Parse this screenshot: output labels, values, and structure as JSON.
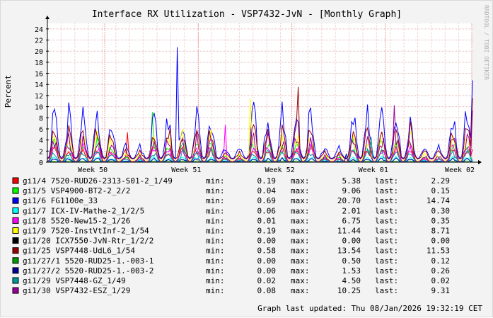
{
  "watermark": "RRDTOOL / TOBI OETIKER",
  "footer": {
    "updated": "Graph last updated: Thu 08/Jan/2026 19:32:19 CET"
  },
  "colors": {
    "background": "#f3f3f3",
    "canvas": "#ffffff",
    "grid_minor": "#e6b8b8",
    "grid_major": "#e6b8b8"
  },
  "chart_data": {
    "type": "line",
    "title": "Interface RX Utilization - VSP7432-JvN - [Monthly Graph]",
    "ylabel": "Percent",
    "xlabel": "",
    "ylim": [
      0,
      25
    ],
    "yticks": [
      0,
      2,
      4,
      6,
      8,
      10,
      12,
      14,
      16,
      18,
      20,
      22,
      24
    ],
    "x_ticks": [
      {
        "label": "Week 50",
        "at": 0.135
      },
      {
        "label": "Week 51",
        "at": 0.355
      },
      {
        "label": "Week 52",
        "at": 0.575
      },
      {
        "label": "Week 01",
        "at": 0.795
      },
      {
        "label": "Week 02",
        "at": 1.0
      }
    ],
    "grid": true,
    "legend_placement": "bottom",
    "stat_labels": {
      "min": "min:",
      "max": "max:",
      "last": "last:"
    },
    "series": [
      {
        "name": "gi1/4 7520-RUD26-2313-S01-2_1/49",
        "color": "#ff0000",
        "min": "0.19",
        "max": "5.38",
        "last": "2.29"
      },
      {
        "name": "gi1/5 VSP4900-BT2-2_2/2",
        "color": "#00ff00",
        "min": "0.04",
        "max": "9.06",
        "last": "0.15"
      },
      {
        "name": "gi1/6 FG1100e_33",
        "color": "#0000ff",
        "min": "0.69",
        "max": "20.70",
        "last": "14.74"
      },
      {
        "name": "gi1/7 ICX-IV-Mathe-2_1/2/5",
        "color": "#00ffff",
        "min": "0.06",
        "max": "2.01",
        "last": "0.30"
      },
      {
        "name": "gi1/8 5520-New15-2_1/26",
        "color": "#ff00ff",
        "min": "0.01",
        "max": "6.75",
        "last": "0.35"
      },
      {
        "name": "gi1/9 7520-InstVtInf-2_1/54",
        "color": "#ffff00",
        "min": "0.19",
        "max": "11.44",
        "last": "8.71"
      },
      {
        "name": "gi1/20 ICX7550-JvN-Rtr_1/2/2",
        "color": "#000000",
        "min": "0.00",
        "max": "0.00",
        "last": "0.00"
      },
      {
        "name": "gi1/25 VSP7448-UdL6_1/54",
        "color": "#990000",
        "min": "0.58",
        "max": "13.54",
        "last": "11.53"
      },
      {
        "name": "gi1/27/1 5520-RUD25-1.-003-1",
        "color": "#009900",
        "min": "0.00",
        "max": "0.50",
        "last": "0.12"
      },
      {
        "name": "gi1/27/2 5520-RUD25-1.-003-2",
        "color": "#000099",
        "min": "0.00",
        "max": "1.53",
        "last": "0.26"
      },
      {
        "name": "gi1/29 VSP7448-GZ_1/49",
        "color": "#009999",
        "min": "0.02",
        "max": "4.50",
        "last": "0.02"
      },
      {
        "name": "gi1/30 VSP7432-ESZ_1/29",
        "color": "#990099",
        "min": "0.08",
        "max": "10.25",
        "last": "9.31"
      }
    ]
  }
}
